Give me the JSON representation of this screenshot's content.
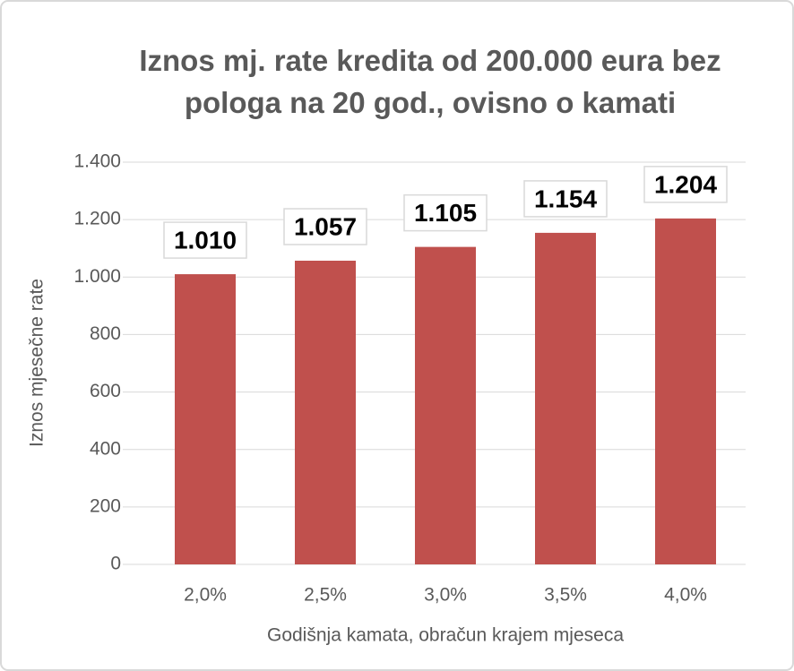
{
  "chart_data": {
    "type": "bar",
    "title": "Iznos mj. rate kredita od 200.000 eura bez pologa na 20 god., ovisno o kamati",
    "x_label": "Godišnja kamata, obračun krajem mjeseca",
    "y_label": "Iznos mjesečne rate",
    "categories": [
      "2,0%",
      "2,5%",
      "3,0%",
      "3,5%",
      "4,0%"
    ],
    "values": [
      1010,
      1057,
      1105,
      1154,
      1204
    ],
    "value_labels": [
      "1.010",
      "1.057",
      "1.105",
      "1.154",
      "1.204"
    ],
    "color": "#c0504d",
    "ylim": [
      0,
      1400
    ],
    "yticks": [
      0,
      200,
      400,
      600,
      800,
      {
        "value": 1000,
        "label": "1.000"
      },
      {
        "value": 1200,
        "label": "1.200"
      },
      {
        "value": 1400,
        "label": "1.400"
      }
    ],
    "grid": true
  }
}
